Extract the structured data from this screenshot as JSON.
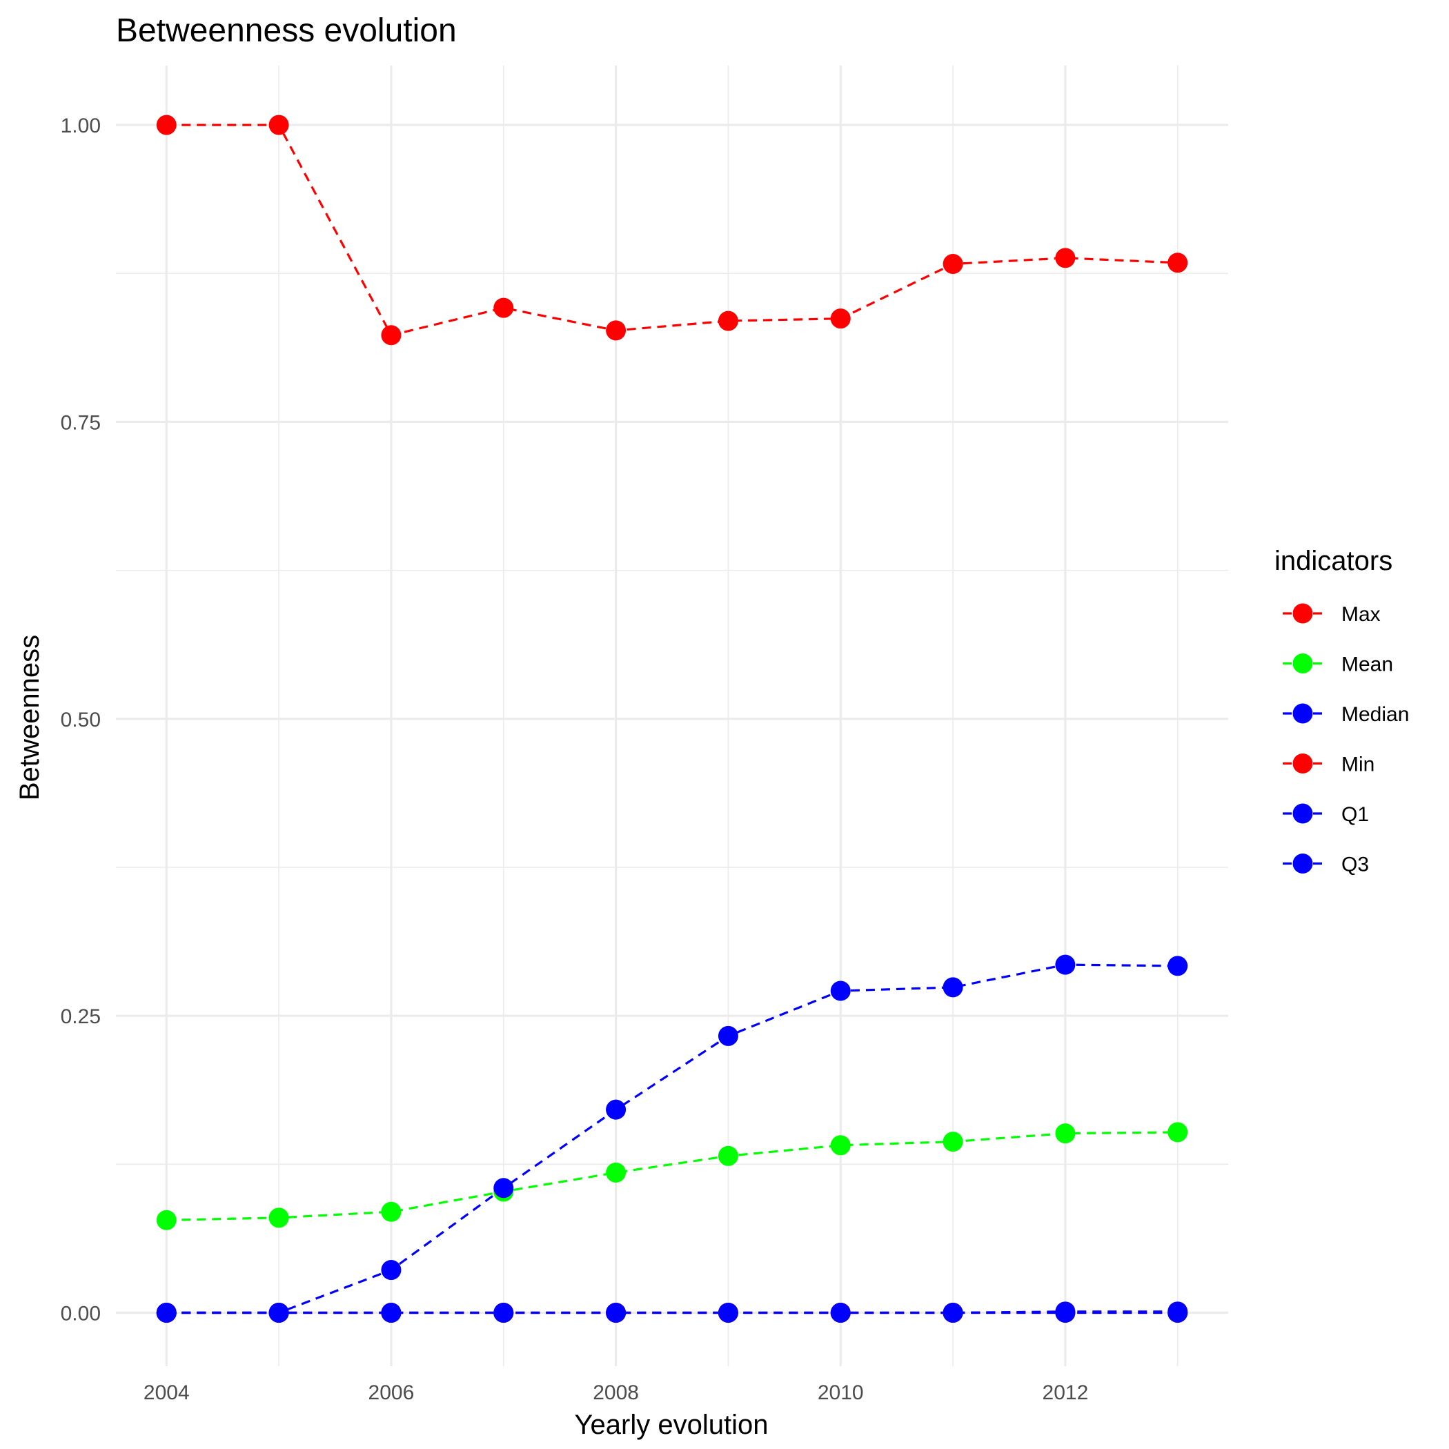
{
  "chart_data": {
    "type": "line",
    "title": "Betweenness evolution",
    "xlabel": "Yearly evolution",
    "ylabel": "Betweenness",
    "x": [
      2004,
      2005,
      2006,
      2007,
      2008,
      2009,
      2010,
      2011,
      2012,
      2013
    ],
    "xlim": [
      2003.55,
      2013.45
    ],
    "ylim": [
      -0.045,
      1.05
    ],
    "xticks": [
      2004,
      2006,
      2008,
      2010,
      2012
    ],
    "xtick_labels": [
      "2004",
      "2006",
      "2008",
      "2010",
      "2012"
    ],
    "yticks": [
      0,
      0.25,
      0.5,
      0.75,
      1.0
    ],
    "ytick_labels": [
      "0.00",
      "0.25",
      "0.50",
      "0.75",
      "1.00"
    ],
    "grid": true,
    "line_style": "dashed",
    "legend_title": "indicators",
    "legend_position": "right",
    "series": [
      {
        "name": "Max",
        "color": "#ff0000",
        "values": [
          1.0,
          1.0,
          0.823,
          0.846,
          0.827,
          0.835,
          0.837,
          0.883,
          0.888,
          0.884
        ]
      },
      {
        "name": "Mean",
        "color": "#00ff00",
        "values": [
          0.078,
          0.08,
          0.085,
          0.102,
          0.118,
          0.132,
          0.141,
          0.144,
          0.151,
          0.152
        ]
      },
      {
        "name": "Median",
        "color": "#0000ff",
        "values": [
          0.0,
          0.0,
          0.0,
          0.0,
          0.0,
          0.0,
          0.0,
          0.0,
          0.001,
          0.001
        ]
      },
      {
        "name": "Min",
        "color": "#ff0000",
        "values": [
          0.0,
          0.0,
          0.0,
          0.0,
          0.0,
          0.0,
          0.0,
          0.0,
          0.0,
          0.0
        ]
      },
      {
        "name": "Q1",
        "color": "#0000ff",
        "values": [
          0.0,
          0.0,
          0.0,
          0.0,
          0.0,
          0.0,
          0.0,
          0.0,
          0.0,
          0.0
        ]
      },
      {
        "name": "Q3",
        "color": "#0000ff",
        "values": [
          0.0,
          0.0,
          0.036,
          0.105,
          0.171,
          0.233,
          0.271,
          0.274,
          0.293,
          0.292
        ]
      }
    ]
  }
}
